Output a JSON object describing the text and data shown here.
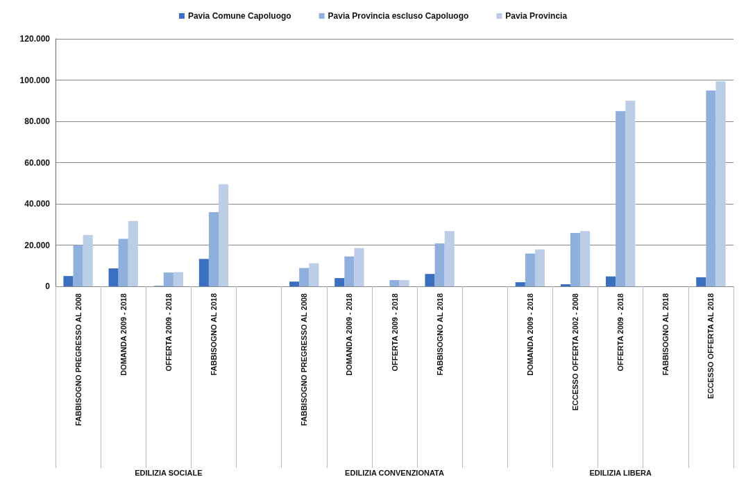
{
  "chart_data": {
    "type": "bar",
    "categories": [
      "FABBISOGNO PREGRESSO AL 2008",
      "DOMANDA 2009 - 2018",
      "OFFERTA 2009 - 2018",
      "FABBISOGNO AL 2018",
      null,
      "FABBISOGNO PREGRESSO AL 2008",
      "DOMANDA 2009 - 2018",
      "OFFERTA 2009 - 2018",
      "FABBISOGNO AL 2018",
      null,
      "DOMANDA 2009 - 2018",
      "ECCESSO OFFERTA 2002 - 2008",
      "OFFERTA 2009 - 2018",
      "FABBISOGNO AL 2018",
      "ECCESSO OFFERTA AL 2018"
    ],
    "series": [
      {
        "name": "Pavia Comune Capoluogo",
        "color": "#3b6fc0",
        "values": [
          5000,
          8700,
          200,
          13300,
          null,
          2300,
          4000,
          0,
          6000,
          null,
          2000,
          1000,
          4800,
          0,
          4400
        ]
      },
      {
        "name": "Pavia Provincia escluso Capoluogo",
        "color": "#8fb0dd",
        "values": [
          20000,
          23000,
          6700,
          36000,
          null,
          8900,
          14500,
          3000,
          20800,
          null,
          15900,
          25900,
          85000,
          0,
          95000
        ]
      },
      {
        "name": "Pavia Provincia",
        "color": "#bccde8",
        "values": [
          24900,
          31700,
          6900,
          49500,
          null,
          11200,
          18600,
          3000,
          26800,
          null,
          17900,
          26800,
          90000,
          0,
          99400
        ]
      }
    ],
    "ylim": [
      0,
      120000
    ],
    "yticks": [
      {
        "value": 0,
        "label": "0"
      },
      {
        "value": 20000,
        "label": "20.000"
      },
      {
        "value": 40000,
        "label": "40.000"
      },
      {
        "value": 60000,
        "label": "60.000"
      },
      {
        "value": 80000,
        "label": "80.000"
      },
      {
        "value": 100000,
        "label": "100.000"
      },
      {
        "value": 120000,
        "label": "120.000"
      }
    ],
    "grid": "y",
    "legend": "top",
    "annotations": [
      "EDILIZIA SOCIALE",
      "EDILIZIA CONVENZIONATA",
      "EDILIZIA LIBERA"
    ]
  }
}
